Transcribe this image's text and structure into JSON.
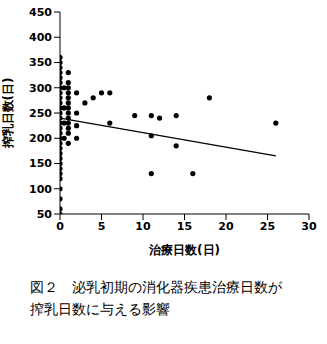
{
  "chart_data": {
    "type": "scatter",
    "title": "図２　泌乳初期の消化器疾患治療日数が\n搾乳日数に与える影響",
    "x_label": "治療日数(日)",
    "y_label": "搾乳日数(日)",
    "x": [
      0,
      0,
      0,
      0,
      0,
      0,
      0,
      0,
      0,
      0,
      0,
      0,
      0,
      0,
      0,
      0,
      0,
      0,
      0,
      0,
      0,
      0,
      0,
      0,
      0,
      0,
      0,
      0,
      0,
      0.5,
      0.5,
      0.5,
      0.5,
      1,
      1,
      1,
      1,
      1,
      1,
      1,
      1,
      1,
      1,
      1,
      1,
      1,
      2,
      2,
      2,
      2,
      3,
      4,
      5,
      6,
      6,
      9,
      11,
      11,
      11,
      12,
      14,
      14,
      16,
      18,
      26
    ],
    "values": [
      360,
      350,
      340,
      330,
      320,
      310,
      300,
      290,
      280,
      270,
      260,
      250,
      240,
      230,
      220,
      210,
      200,
      190,
      180,
      170,
      160,
      150,
      140,
      130,
      120,
      100,
      80,
      60,
      50,
      300,
      260,
      230,
      200,
      330,
      310,
      300,
      290,
      280,
      270,
      260,
      250,
      240,
      230,
      220,
      210,
      190,
      290,
      250,
      225,
      200,
      270,
      280,
      290,
      290,
      230,
      245,
      245,
      205,
      130,
      240,
      245,
      185,
      130,
      280,
      230
    ],
    "trend_line": {
      "x": [
        0,
        26
      ],
      "values": [
        240,
        165
      ]
    },
    "color": "#000000",
    "xlim": [
      0,
      30
    ],
    "ylim": [
      50,
      450
    ],
    "xticks": [
      0,
      5,
      10,
      15,
      20,
      25,
      30
    ],
    "yticks": [
      50,
      100,
      150,
      200,
      250,
      300,
      350,
      400,
      450
    ]
  }
}
